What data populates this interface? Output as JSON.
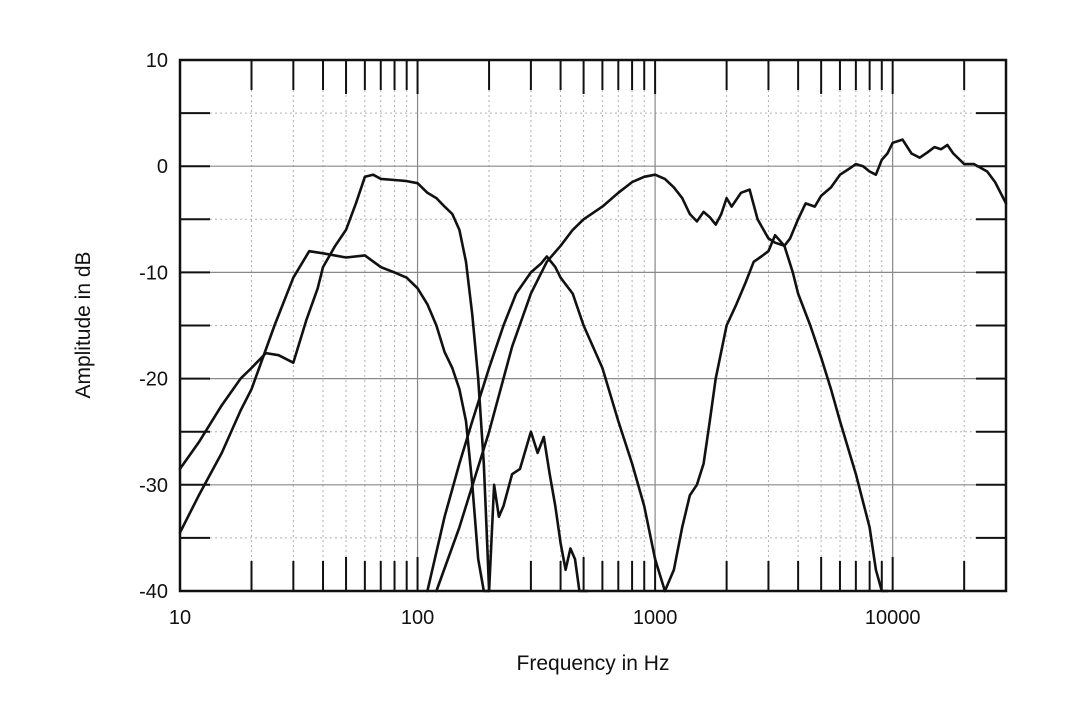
{
  "chart_data": {
    "type": "line",
    "title": "",
    "xlabel": "Frequency in Hz",
    "ylabel": "Amplitude in dB",
    "x_scale": "log",
    "xlim": [
      10,
      30000
    ],
    "ylim": [
      -40,
      10
    ],
    "x_ticks": [
      10,
      100,
      1000,
      10000
    ],
    "x_tick_labels": [
      "10",
      "100",
      "1000",
      "10000"
    ],
    "y_ticks": [
      10,
      0,
      -10,
      -20,
      -30,
      -40
    ],
    "y_tick_labels": [
      "10",
      "0",
      "-10",
      "-20",
      "-30",
      "-40"
    ],
    "grid": true,
    "legend": "none",
    "colors": {
      "line": "#111111",
      "grid_major": "#888888",
      "grid_minor": "#b0b0b0",
      "frame": "#111111"
    },
    "series": [
      {
        "x": [
          10,
          12,
          15,
          18,
          20,
          23,
          26,
          30,
          34,
          38,
          40,
          45,
          50,
          55,
          60,
          65,
          70,
          80,
          90,
          100,
          110,
          120,
          130,
          140,
          150,
          160,
          170,
          180,
          190,
          195,
          200
        ],
        "y": [
          -28.5,
          -26,
          -22.5,
          -20,
          -19,
          -17.6,
          -17.8,
          -18.5,
          -14.5,
          -11.5,
          -9.5,
          -7.5,
          -6,
          -3.5,
          -1,
          -0.8,
          -1.2,
          -1.3,
          -1.4,
          -1.6,
          -2.5,
          -3,
          -3.8,
          -4.5,
          -6,
          -9,
          -14,
          -20,
          -28,
          -34,
          -40
        ]
      },
      {
        "x": [
          10,
          12,
          15,
          18,
          20,
          25,
          30,
          35,
          40,
          50,
          60,
          70,
          80,
          90,
          100,
          110,
          120,
          130,
          140,
          150,
          160,
          170,
          180,
          190,
          200,
          210,
          220,
          230,
          250,
          270,
          300,
          320,
          340,
          360,
          380,
          400,
          420,
          440,
          460,
          480,
          500,
          520
        ],
        "y": [
          -34.5,
          -31,
          -27,
          -23,
          -21,
          -15,
          -10.5,
          -8,
          -8.2,
          -8.6,
          -8.4,
          -9.5,
          -10,
          -10.5,
          -11.5,
          -13,
          -15,
          -17.5,
          -19,
          -21,
          -24,
          -30,
          -37,
          -40,
          -40,
          -30,
          -33,
          -32,
          -29,
          -28.5,
          -25,
          -27,
          -25.5,
          -29,
          -32,
          -35.5,
          -38,
          -36,
          -37,
          -40,
          -40,
          -40
        ]
      },
      {
        "x": [
          110,
          130,
          150,
          170,
          200,
          230,
          260,
          300,
          330,
          350,
          380,
          400,
          450,
          500,
          600,
          700,
          800,
          900,
          1000,
          1100,
          1200,
          1300,
          1400,
          1500,
          1600,
          1700,
          1800,
          2000,
          2200,
          2400,
          2600,
          2800,
          3000,
          3200,
          3500,
          3800,
          4000,
          4500,
          5000,
          5500,
          6000,
          7000,
          8000,
          8500,
          9000,
          9500
        ],
        "y": [
          -40,
          -33,
          -28,
          -24,
          -19,
          -15,
          -12,
          -10,
          -9.2,
          -8.5,
          -9.5,
          -10.5,
          -12,
          -15,
          -19,
          -24,
          -28,
          -32,
          -37,
          -40,
          -38,
          -34,
          -31,
          -30,
          -28,
          -24,
          -20,
          -15,
          -13,
          -11,
          -9,
          -8.5,
          -8,
          -6.5,
          -7.5,
          -10,
          -12,
          -15,
          -18,
          -21,
          -24,
          -29,
          -34,
          -38,
          -40,
          -40
        ]
      },
      {
        "x": [
          120,
          150,
          200,
          250,
          300,
          350,
          400,
          450,
          500,
          600,
          700,
          800,
          900,
          1000,
          1100,
          1200,
          1300,
          1400,
          1500,
          1600,
          1700,
          1800,
          1900,
          2000,
          2100,
          2300,
          2500,
          2700,
          3000,
          3200,
          3500,
          3700,
          4000,
          4300,
          4700,
          5000,
          5500,
          6000,
          6500,
          7000,
          7500,
          8000,
          8500,
          9000,
          9500,
          10000,
          11000,
          12000,
          13000,
          14000,
          15000,
          16000,
          17000,
          18000,
          20000,
          22000,
          25000,
          27000,
          30000
        ],
        "y": [
          -40,
          -34,
          -25,
          -17,
          -12,
          -9,
          -7.5,
          -6,
          -5,
          -3.8,
          -2.5,
          -1.5,
          -1,
          -0.8,
          -1.2,
          -2,
          -3,
          -4.5,
          -5.2,
          -4.3,
          -4.8,
          -5.5,
          -4.5,
          -3,
          -3.8,
          -2.5,
          -2.2,
          -5,
          -6.8,
          -7.2,
          -7.5,
          -6.8,
          -5,
          -3.5,
          -3.8,
          -2.8,
          -2,
          -0.8,
          -0.3,
          0.2,
          0,
          -0.5,
          -0.8,
          0.6,
          1.2,
          2.2,
          2.5,
          1.2,
          0.8,
          1.3,
          1.8,
          1.6,
          2,
          1.2,
          0.2,
          0.2,
          -0.5,
          -1.5,
          -3.5
        ]
      }
    ]
  }
}
